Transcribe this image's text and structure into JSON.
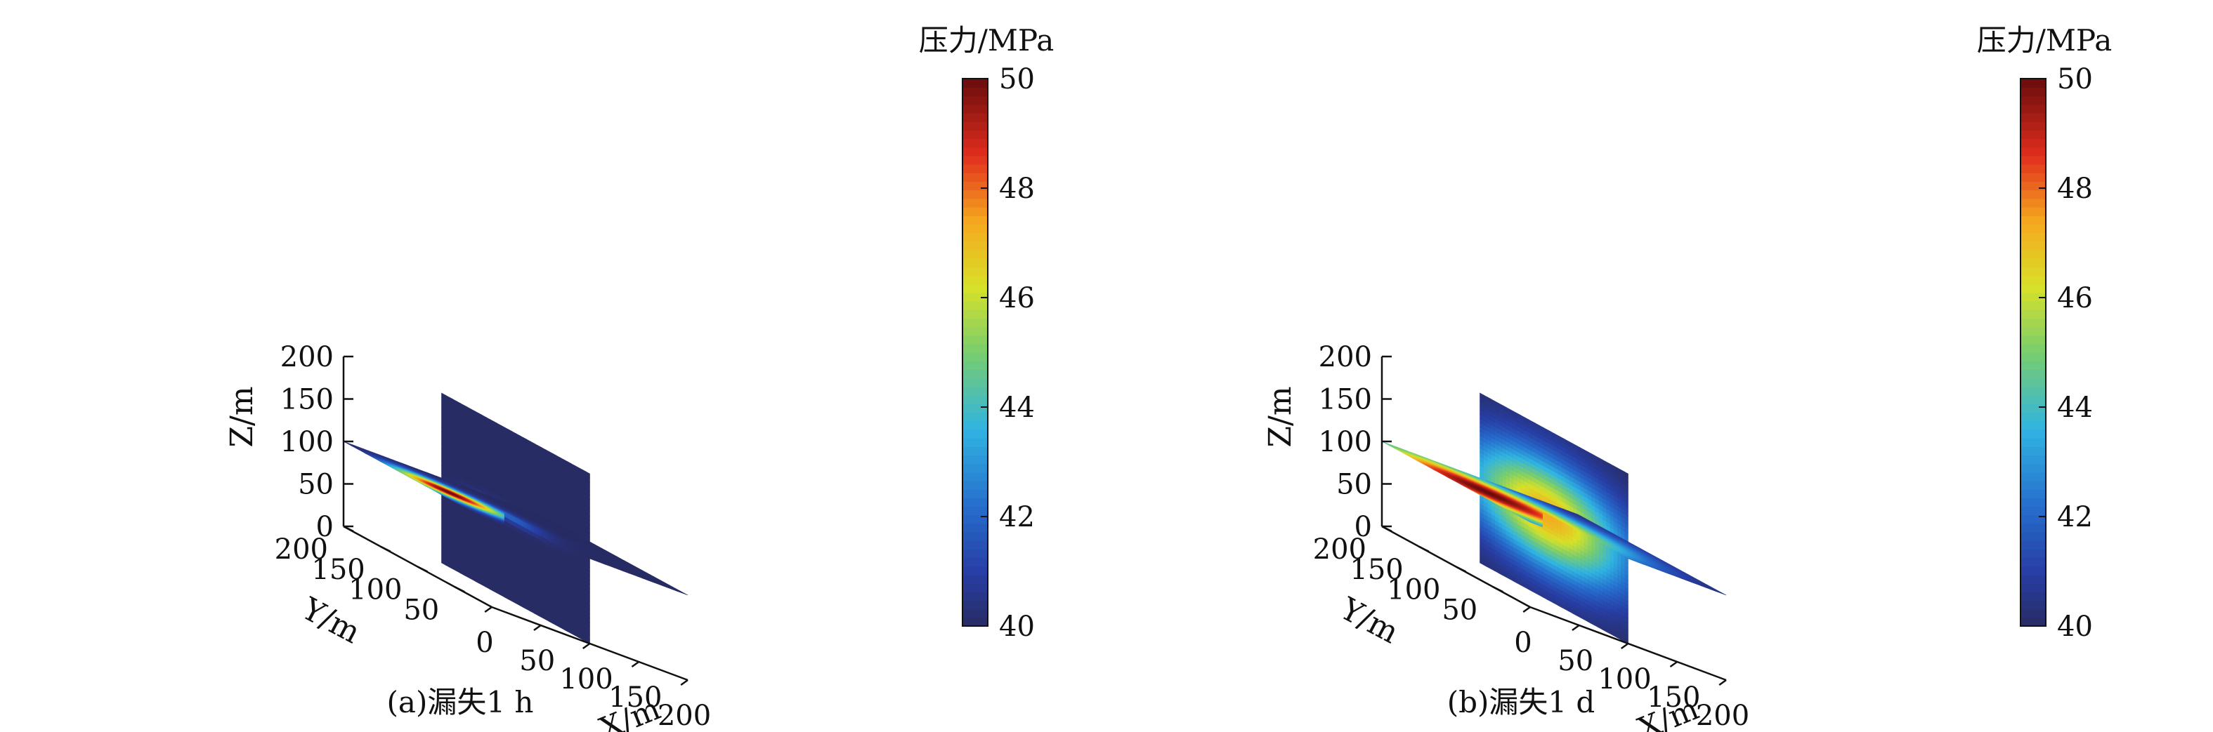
{
  "chart_data": [
    {
      "type": "heatmap",
      "subtype": "3d-slice",
      "caption": "(a)漏失1 h",
      "xlabel": "X/m",
      "ylabel": "Y/m",
      "zlabel": "Z/m",
      "xlim": [
        0,
        200
      ],
      "ylim": [
        0,
        200
      ],
      "zlim": [
        0,
        200
      ],
      "x_ticks": [
        "0",
        "50",
        "100",
        "150",
        "200"
      ],
      "y_ticks": [
        "50",
        "100",
        "150",
        "200"
      ],
      "z_ticks": [
        "0",
        "50",
        "100",
        "150",
        "200"
      ],
      "slices": [
        "z=100",
        "x=100"
      ],
      "colorbar": {
        "title": "压力/MPa",
        "min": 40,
        "max": 50,
        "ticks": [
          "40",
          "42",
          "44",
          "46",
          "48",
          "50"
        ],
        "colormap": "jet"
      },
      "background_pressure": 40,
      "peak_pressure": 50,
      "peak_location": {
        "x": 40,
        "y": 110,
        "z": 100
      },
      "horizontal_plume_extent_m": 60,
      "vertical_plume_extent_m": 10
    },
    {
      "type": "heatmap",
      "subtype": "3d-slice",
      "caption": "(b)漏失1 d",
      "xlabel": "X/m",
      "ylabel": "Y/m",
      "zlabel": "Z/m",
      "xlim": [
        0,
        200
      ],
      "ylim": [
        0,
        200
      ],
      "zlim": [
        0,
        200
      ],
      "x_ticks": [
        "0",
        "50",
        "100",
        "150",
        "200"
      ],
      "y_ticks": [
        "50",
        "100",
        "150",
        "200"
      ],
      "z_ticks": [
        "0",
        "50",
        "100",
        "150",
        "200"
      ],
      "slices": [
        "z=100",
        "x=100"
      ],
      "colorbar": {
        "title": "压力/MPa",
        "min": 40,
        "max": 50,
        "ticks": [
          "40",
          "42",
          "44",
          "46",
          "48",
          "50"
        ],
        "colormap": "jet"
      },
      "background_pressure": 40,
      "peak_pressure": 50,
      "peak_location": {
        "x": 40,
        "y": 110,
        "z": 100
      },
      "horizontal_plume_extent_m": 135,
      "vertical_plume_extent_m": 80
    }
  ]
}
